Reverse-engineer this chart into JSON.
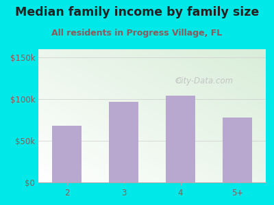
{
  "title": "Median family income by family size",
  "subtitle": "All residents in Progress Village, FL",
  "categories": [
    "2",
    "3",
    "4",
    "5+"
  ],
  "values": [
    68000,
    97000,
    104000,
    78000
  ],
  "bar_color": "#b8a8d0",
  "bg_color": "#00e8e8",
  "plot_bg_color_bottom": "#ffffff",
  "plot_bg_color_top": "#d8eed8",
  "title_color": "#222222",
  "subtitle_color": "#8b5a5a",
  "tick_label_color": "#8b5a5a",
  "yticks": [
    0,
    50000,
    100000,
    150000
  ],
  "ytick_labels": [
    "$0",
    "$50k",
    "$100k",
    "$150k"
  ],
  "ylim": [
    0,
    160000
  ],
  "watermark": "City-Data.com",
  "title_fontsize": 12.5,
  "subtitle_fontsize": 9,
  "tick_fontsize": 8.5
}
